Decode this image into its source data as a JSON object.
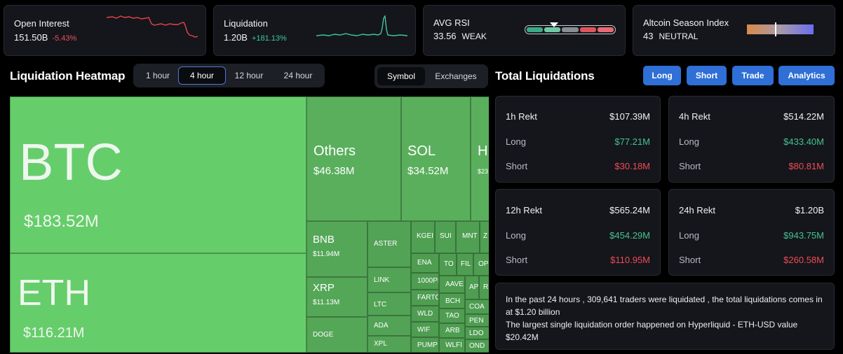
{
  "stats": {
    "open_interest": {
      "title": "Open Interest",
      "value": "151.50B",
      "change": "-5.43%"
    },
    "liquidation": {
      "title": "Liquidation",
      "value": "1.20B",
      "change": "+181.13%"
    },
    "avg_rsi": {
      "title": "AVG RSI",
      "value": "33.56",
      "status": "WEAK"
    },
    "altcoin_season": {
      "title": "Altcoin Season Index",
      "value": "43",
      "status": "NEUTRAL"
    }
  },
  "heatmap": {
    "title": "Liquidation Heatmap",
    "time_tabs": [
      "1 hour",
      "4 hour",
      "12 hour",
      "24 hour"
    ],
    "active_time": "4 hour",
    "mode_tabs": [
      "Symbol",
      "Exchanges"
    ],
    "active_mode": "Symbol",
    "tiles": [
      {
        "name": "BTC",
        "value": "$183.52M"
      },
      {
        "name": "ETH",
        "value": "$116.21M"
      },
      {
        "name": "Others",
        "value": "$46.38M"
      },
      {
        "name": "SOL",
        "value": "$34.52M"
      },
      {
        "name": "H",
        "value": "$23"
      },
      {
        "name": "BNB",
        "value": "$11.94M"
      },
      {
        "name": "XRP",
        "value": "$11.13M"
      },
      {
        "name": "DOGE",
        "value": ""
      },
      {
        "name": "ASTER",
        "value": ""
      },
      {
        "name": "LINK",
        "value": ""
      },
      {
        "name": "LTC",
        "value": ""
      },
      {
        "name": "ADA",
        "value": ""
      },
      {
        "name": "XPL",
        "value": ""
      },
      {
        "name": "KGEI",
        "value": ""
      },
      {
        "name": "SUI",
        "value": ""
      },
      {
        "name": "MNT",
        "value": ""
      },
      {
        "name": "Z",
        "value": ""
      },
      {
        "name": "ENA",
        "value": ""
      },
      {
        "name": "TO",
        "value": ""
      },
      {
        "name": "FIL",
        "value": ""
      },
      {
        "name": "OP",
        "value": ""
      },
      {
        "name": "1000PI",
        "value": ""
      },
      {
        "name": "AAVE",
        "value": ""
      },
      {
        "name": "AP",
        "value": ""
      },
      {
        "name": "R",
        "value": ""
      },
      {
        "name": "FARTC",
        "value": ""
      },
      {
        "name": "BCH",
        "value": ""
      },
      {
        "name": "COA",
        "value": ""
      },
      {
        "name": "WLD",
        "value": ""
      },
      {
        "name": "TAO",
        "value": ""
      },
      {
        "name": "PEN",
        "value": ""
      },
      {
        "name": "WIF",
        "value": ""
      },
      {
        "name": "ARB",
        "value": ""
      },
      {
        "name": "LDO",
        "value": ""
      },
      {
        "name": "PUMP",
        "value": ""
      },
      {
        "name": "WLFI",
        "value": ""
      },
      {
        "name": "OND",
        "value": ""
      }
    ]
  },
  "total": {
    "title": "Total Liquidations",
    "buttons": [
      "Long",
      "Short",
      "Trade",
      "Analytics"
    ],
    "long_label": "Long",
    "short_label": "Short",
    "cards": [
      {
        "period": "1h Rekt",
        "total": "$107.39M",
        "long": "$77.21M",
        "short": "$30.18M"
      },
      {
        "period": "4h Rekt",
        "total": "$514.22M",
        "long": "$433.40M",
        "short": "$80.81M"
      },
      {
        "period": "12h Rekt",
        "total": "$565.24M",
        "long": "$454.29M",
        "short": "$110.95M"
      },
      {
        "period": "24h Rekt",
        "total": "$1.20B",
        "long": "$943.75M",
        "short": "$260.58M"
      }
    ],
    "info_line1": "In the past 24 hours , 309,641 traders were liquidated , the total liquidations comes in at $1.20 billion",
    "info_line2": "The largest single liquidation order happened on Hyperliquid - ETH-USD value $20.42M"
  },
  "colors": {
    "accent": "#2f6fd6",
    "green": "#45c28e",
    "red": "#ef4b55",
    "tile_big": "#66cd6b",
    "tile_mid": "#57a95a"
  }
}
